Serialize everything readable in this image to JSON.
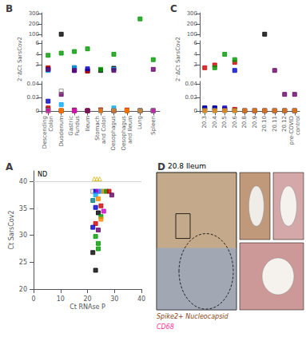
{
  "chart_data": [
    {
      "type": "scatter",
      "title": "A",
      "xlabel": "Ct RNAse P",
      "ylabel": "Ct SarsCov2",
      "xlim": [
        0,
        40
      ],
      "ylim": [
        20,
        42
      ],
      "xticks": [
        0,
        10,
        20,
        30,
        40
      ],
      "yticks": [
        20,
        25,
        30,
        35,
        40
      ],
      "grid": false,
      "annotations": [
        {
          "text": "ND",
          "y": 40
        }
      ],
      "points": [
        {
          "x": 22.5,
          "y": 40.5,
          "color": "#d4b800",
          "marker": "open-triangle"
        },
        {
          "x": 23.5,
          "y": 40.5,
          "color": "#d4b800",
          "marker": "open-triangle"
        },
        {
          "x": 24.5,
          "y": 40.5,
          "color": "#d4b800",
          "marker": "open-triangle"
        },
        {
          "x": 22,
          "y": 38.2,
          "color": "#808080",
          "marker": "open-square"
        },
        {
          "x": 23,
          "y": 38.2,
          "color": "#0000cc",
          "marker": "square"
        },
        {
          "x": 24,
          "y": 38.2,
          "color": "#cc00cc",
          "marker": "square"
        },
        {
          "x": 25,
          "y": 38.2,
          "color": "#00aaff",
          "marker": "square"
        },
        {
          "x": 26,
          "y": 38.2,
          "color": "#ff8800",
          "marker": "square"
        },
        {
          "x": 27,
          "y": 38.2,
          "color": "#009900",
          "marker": "square"
        },
        {
          "x": 28,
          "y": 38.2,
          "color": "#cc0000",
          "marker": "square"
        },
        {
          "x": 29,
          "y": 37.5,
          "color": "#660066",
          "marker": "square"
        },
        {
          "x": 23,
          "y": 37.5,
          "color": "#00aaff",
          "marker": "square"
        },
        {
          "x": 24,
          "y": 36.8,
          "color": "#ff8800",
          "marker": "square"
        },
        {
          "x": 22,
          "y": 36.5,
          "color": "#008080",
          "marker": "square"
        },
        {
          "x": 25,
          "y": 35.5,
          "color": "#cc0000",
          "marker": "square"
        },
        {
          "x": 23,
          "y": 35.2,
          "color": "#0000cc",
          "marker": "square"
        },
        {
          "x": 26,
          "y": 34.5,
          "color": "#cc00cc",
          "marker": "square"
        },
        {
          "x": 24,
          "y": 34.2,
          "color": "#000000",
          "marker": "square"
        },
        {
          "x": 25,
          "y": 33.5,
          "color": "#009900",
          "marker": "square"
        },
        {
          "x": 25,
          "y": 33.0,
          "color": "#ff8800",
          "marker": "square"
        },
        {
          "x": 23,
          "y": 32.2,
          "color": "#cc0000",
          "marker": "square"
        },
        {
          "x": 22,
          "y": 31.5,
          "color": "#0000cc",
          "marker": "square"
        },
        {
          "x": 24,
          "y": 31.0,
          "color": "#660066",
          "marker": "square"
        },
        {
          "x": 23,
          "y": 29.8,
          "color": "#009900",
          "marker": "square"
        },
        {
          "x": 24,
          "y": 28.5,
          "color": "#009900",
          "marker": "square"
        },
        {
          "x": 24,
          "y": 27.5,
          "color": "#009900",
          "marker": "square"
        },
        {
          "x": 22,
          "y": 26.8,
          "color": "#000000",
          "marker": "square"
        },
        {
          "x": 23,
          "y": 23.5,
          "color": "#000000",
          "marker": "square"
        }
      ]
    },
    {
      "type": "scatter",
      "title": "B",
      "ylabel": "2⁻ΔCt SarsCov2",
      "grid": false,
      "categories": [
        "Descending\nColon",
        "Duodenum",
        "Gastric\nFundus",
        "Ileum",
        "Stomach\nand Colon",
        "Oesophagus",
        "Oesophagus\nand Ileum",
        "Lung",
        "Spleen"
      ],
      "sections": [
        {
          "ylim": [
            75,
            310
          ],
          "yticks": [
            100,
            200,
            300
          ]
        },
        {
          "ylim": [
            -0.3,
            6.5
          ],
          "yticks": [
            1,
            2,
            4,
            6
          ]
        },
        {
          "ylim": [
            -0.003,
            0.044
          ],
          "yticks": [
            0,
            0.02,
            0.04
          ]
        }
      ],
      "series": [
        {
          "color": "#000000",
          "marker": "square",
          "upper": [
            1.3,
            100,
            1.5,
            0.9,
            1.0,
            1.4,
            null,
            null,
            null
          ],
          "lower": [
            0.003,
            0.001,
            0.002,
            0.001,
            0.002,
            0.001,
            0.001,
            0.001,
            0.001
          ]
        },
        {
          "color": "#cc0000",
          "marker": "square",
          "upper": [
            1.5,
            null,
            null,
            0.9,
            null,
            null,
            null,
            null,
            null
          ],
          "lower": [
            0.005,
            0.001,
            0.001,
            0.001,
            0.002,
            0.001,
            0.002,
            0.001,
            null
          ]
        },
        {
          "color": "#009900",
          "marker": "square",
          "upper": [
            3.8,
            4.2,
            4.5,
            5.0,
            1.2,
            4.0,
            null,
            250,
            3.0
          ],
          "lower": [
            null,
            null,
            null,
            null,
            null,
            null,
            null,
            null,
            null
          ]
        },
        {
          "color": "#0000cc",
          "marker": "square",
          "upper": [
            1.1,
            null,
            1.0,
            1.3,
            null,
            null,
            null,
            null,
            null
          ],
          "lower": [
            0.015,
            null,
            0.001,
            0.001,
            null,
            0.001,
            null,
            0.001,
            0.001
          ]
        },
        {
          "color": "#00aaff",
          "marker": "square",
          "upper": [
            1.0,
            null,
            1.5,
            null,
            null,
            1.2,
            null,
            null,
            null
          ],
          "lower": [
            null,
            0.01,
            null,
            null,
            null,
            0.005,
            null,
            0.001,
            0.001
          ]
        },
        {
          "color": "#ff8800",
          "marker": "square",
          "upper": [
            null,
            null,
            null,
            null,
            null,
            null,
            null,
            null,
            null
          ],
          "lower": [
            0.001,
            0.001,
            0.001,
            0.001,
            0.001,
            0.001,
            0.001,
            0.001,
            0.001
          ]
        },
        {
          "color": "#660066",
          "marker": "square",
          "upper": [
            1.2,
            null,
            1.0,
            null,
            null,
            1.0,
            null,
            null,
            1.2
          ],
          "lower": [
            null,
            0.025,
            null,
            0.001,
            null,
            null,
            null,
            null,
            null
          ]
        },
        {
          "color": "#cc00cc",
          "marker": "square",
          "upper": [
            null,
            null,
            null,
            null,
            null,
            null,
            null,
            null,
            null
          ],
          "lower": [
            0.001,
            null,
            0.001,
            null,
            null,
            null,
            null,
            null,
            0.001
          ]
        },
        {
          "color": "#808080",
          "marker": "open-square",
          "upper": [
            null,
            null,
            null,
            null,
            null,
            null,
            null,
            null,
            null
          ],
          "lower": [
            0.002,
            0.03,
            null,
            null,
            0.001,
            0.001,
            null,
            0.001,
            0.001
          ]
        }
      ]
    },
    {
      "type": "scatter",
      "title": "C",
      "ylabel": "2⁻ΔCt SarsCov2",
      "grid": false,
      "categories": [
        "20.3",
        "20.4",
        "20.5",
        "20.6",
        "20.8",
        "20.9",
        "20.10",
        "20.11",
        "20.12",
        "pre-COVID\ncontrol"
      ],
      "sections": [
        {
          "ylim": [
            75,
            310
          ],
          "yticks": [
            100,
            200,
            300
          ]
        },
        {
          "ylim": [
            -0.3,
            6.5
          ],
          "yticks": [
            1,
            2,
            4,
            6
          ]
        },
        {
          "ylim": [
            -0.003,
            0.044
          ],
          "yticks": [
            0,
            0.02,
            0.04
          ]
        }
      ],
      "series": [
        {
          "color": "#000000",
          "marker": "square",
          "upper": [
            null,
            null,
            null,
            null,
            null,
            null,
            100,
            null,
            null,
            null
          ],
          "lower": [
            0.005,
            0.005,
            0.003,
            0.002,
            0.001,
            0.001,
            0.001,
            0.001,
            0.001,
            0.001
          ]
        },
        {
          "color": "#cc0000",
          "marker": "square",
          "upper": [
            1.5,
            2.0,
            null,
            2.5,
            null,
            null,
            null,
            null,
            null,
            null
          ],
          "lower": [
            null,
            null,
            0.003,
            0.003,
            null,
            null,
            null,
            null,
            null,
            null
          ]
        },
        {
          "color": "#009900",
          "marker": "square",
          "upper": [
            null,
            1.5,
            4.0,
            3.0,
            null,
            null,
            null,
            null,
            null,
            null
          ],
          "lower": [
            null,
            null,
            null,
            null,
            null,
            null,
            null,
            null,
            null,
            null
          ]
        },
        {
          "color": "#0000cc",
          "marker": "square",
          "upper": [
            null,
            null,
            null,
            1.0,
            null,
            null,
            null,
            null,
            null,
            null
          ],
          "lower": [
            0.005,
            0.005,
            0.005,
            null,
            0.001,
            0.001,
            0.001,
            0.001,
            0.001,
            0.001
          ]
        },
        {
          "color": "#00aaff",
          "marker": "square",
          "upper": [
            null,
            null,
            null,
            null,
            null,
            null,
            null,
            null,
            null,
            null
          ],
          "lower": [
            0.001,
            0.001,
            0.001,
            0.001,
            null,
            null,
            null,
            null,
            null,
            null
          ]
        },
        {
          "color": "#ff8800",
          "marker": "square",
          "upper": [
            null,
            null,
            null,
            null,
            null,
            null,
            null,
            null,
            null,
            null
          ],
          "lower": [
            0.001,
            0.001,
            0.001,
            0.001,
            0.001,
            0.001,
            0.001,
            0.001,
            0.001,
            0.001
          ]
        },
        {
          "color": "#660066",
          "marker": "square",
          "upper": [
            null,
            null,
            null,
            null,
            null,
            null,
            null,
            1.0,
            null,
            null
          ],
          "lower": [
            null,
            null,
            null,
            null,
            null,
            null,
            null,
            null,
            0.025,
            0.025
          ]
        },
        {
          "color": "#cc00cc",
          "marker": "square",
          "upper": [
            null,
            null,
            null,
            null,
            null,
            null,
            null,
            null,
            null,
            null
          ],
          "lower": [
            null,
            null,
            null,
            null,
            null,
            null,
            null,
            null,
            null,
            null
          ]
        },
        {
          "color": "#808080",
          "marker": "open-square",
          "upper": [
            null,
            null,
            null,
            null,
            null,
            null,
            null,
            null,
            null,
            null
          ],
          "lower": [
            null,
            null,
            null,
            null,
            null,
            null,
            null,
            null,
            null,
            null
          ]
        }
      ]
    },
    {
      "type": "image",
      "title": "D",
      "subtitle": "20.8 Ileum",
      "colors": [
        "#c4aa8a",
        "#9ba8bb",
        "#c0987a",
        "#d4a8a8",
        "#cc9898",
        "#f0ede8",
        "#f5f2ee"
      ],
      "annotations": [
        {
          "text": "Spike2+ Nucleocapsid",
          "color": "#8B4513"
        },
        {
          "text": "CD68",
          "color": "#FF3399"
        }
      ]
    }
  ]
}
